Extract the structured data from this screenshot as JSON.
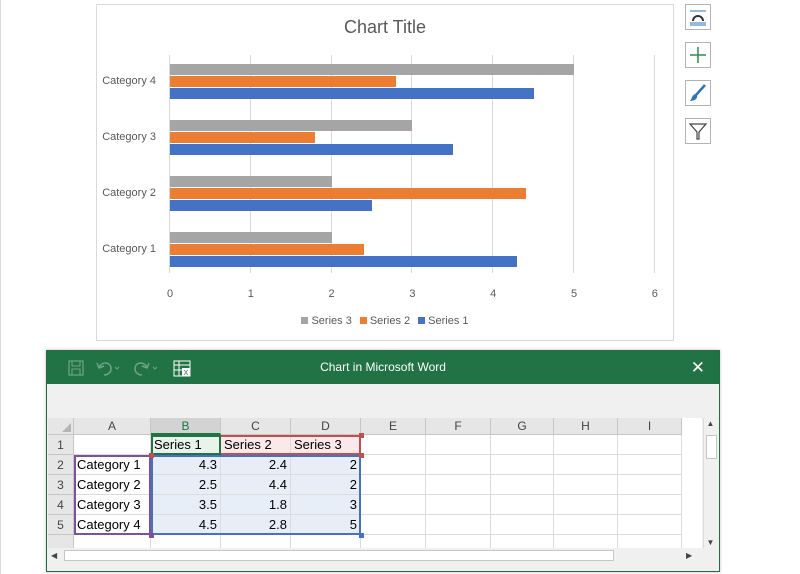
{
  "chart": {
    "title": "Chart Title",
    "categories": [
      "Category 1",
      "Category 2",
      "Category 3",
      "Category 4"
    ],
    "x_ticks": [
      "0",
      "1",
      "2",
      "3",
      "4",
      "5",
      "6"
    ],
    "legend": [
      "Series 3",
      "Series 2",
      "Series 1"
    ]
  },
  "chart_data": {
    "type": "bar",
    "orientation": "horizontal",
    "title": "Chart Title",
    "categories": [
      "Category 1",
      "Category 2",
      "Category 3",
      "Category 4"
    ],
    "series": [
      {
        "name": "Series 1",
        "values": [
          4.3,
          2.5,
          3.5,
          4.5
        ],
        "color": "#4472c4"
      },
      {
        "name": "Series 2",
        "values": [
          2.4,
          4.4,
          1.8,
          2.8
        ],
        "color": "#ed7d31"
      },
      {
        "name": "Series 3",
        "values": [
          2,
          2,
          3,
          5
        ],
        "color": "#a5a5a5"
      }
    ],
    "xlim": [
      0,
      6
    ],
    "grid": true,
    "legend_position": "bottom"
  },
  "side_tools": [
    "layout-options-icon",
    "chart-elements-icon",
    "chart-styles-icon",
    "chart-filters-icon"
  ],
  "excel": {
    "window_title": "Chart in Microsoft Word",
    "close_label": "✕",
    "columns": [
      "A",
      "B",
      "C",
      "D",
      "E",
      "F",
      "G",
      "H",
      "I"
    ],
    "rows": [
      "1",
      "2",
      "3",
      "4",
      "5"
    ],
    "header_row": [
      "",
      "Series 1",
      "Series 2",
      "Series 3"
    ],
    "data_rows": [
      [
        "Category 1",
        "4.3",
        "2.4",
        "2"
      ],
      [
        "Category 2",
        "2.5",
        "4.4",
        "2"
      ],
      [
        "Category 3",
        "3.5",
        "1.8",
        "3"
      ],
      [
        "Category 4",
        "4.5",
        "2.8",
        "5"
      ]
    ],
    "colors": {
      "titlebar": "#217346",
      "series_box": "#c0504d",
      "category_box": "#7f4fa0",
      "values_box": "#4472c4",
      "selected_col": "#217346"
    }
  }
}
